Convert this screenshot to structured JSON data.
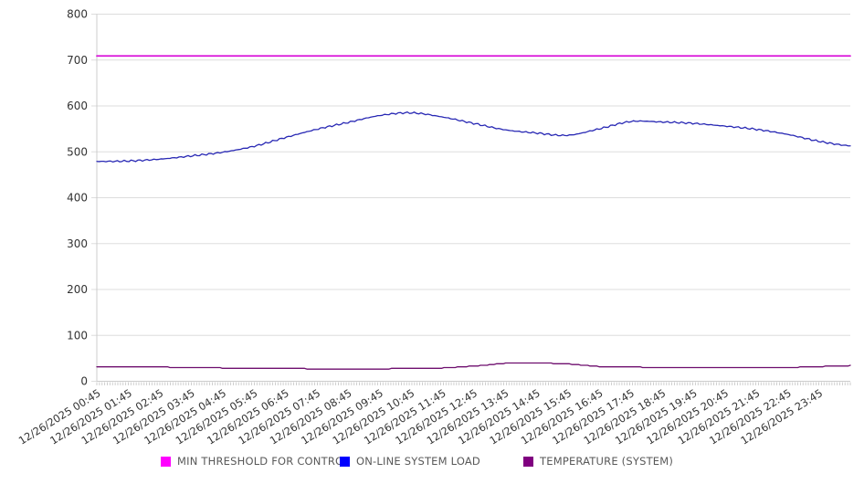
{
  "page": {
    "background": "#ffffff"
  },
  "chart_data": {
    "type": "line",
    "title": "",
    "xlabel": "",
    "ylabel": "",
    "ylim": [
      0,
      800
    ],
    "ytick_step": 100,
    "grid": true,
    "legend_position": "bottom",
    "x_minor_ticks": 288,
    "categories": [
      "12/26/2025 00:45",
      "12/26/2025 01:45",
      "12/26/2025 02:45",
      "12/26/2025 03:45",
      "12/26/2025 04:45",
      "12/26/2025 05:45",
      "12/26/2025 06:45",
      "12/26/2025 07:45",
      "12/26/2025 08:45",
      "12/26/2025 09:45",
      "12/26/2025 10:45",
      "12/26/2025 11:45",
      "12/26/2025 12:45",
      "12/26/2025 13:45",
      "12/26/2025 14:45",
      "12/26/2025 15:45",
      "12/26/2025 16:45",
      "12/26/2025 17:45",
      "12/26/2025 18:45",
      "12/26/2025 19:45",
      "12/26/2025 20:45",
      "12/26/2025 21:45",
      "12/26/2025 22:45",
      "12/26/2025 23:45"
    ],
    "values_note": "24 hourly samples starting 12/26/2025 00:45 plus one right-edge sample",
    "series": [
      {
        "name": "MIN THRESHOLD FOR CONTROL",
        "swatch_color": "#ff00ff",
        "line_color": "#d911d9",
        "shape": "constant",
        "values": [
          709,
          709,
          709,
          709,
          709,
          709,
          709,
          709,
          709,
          709,
          709,
          709,
          709,
          709,
          709,
          709,
          709,
          709,
          709,
          709,
          709,
          709,
          709,
          709,
          709
        ]
      },
      {
        "name": "ON-LINE SYSTEM LOAD",
        "swatch_color": "#0000ff",
        "line_color": "#2828b4",
        "shape": "smooth-noisy",
        "values": [
          479,
          480,
          484,
          491,
          499,
          512,
          531,
          549,
          564,
          579,
          585,
          576,
          562,
          548,
          541,
          536,
          550,
          566,
          565,
          562,
          556,
          549,
          538,
          523,
          513
        ]
      },
      {
        "name": "TEMPERATURE (SYSTEM)",
        "swatch_color": "#800080",
        "line_color": "#6e0e6e",
        "shape": "stepped",
        "values": [
          32,
          31,
          31,
          30,
          29,
          28,
          28,
          27,
          27,
          27,
          28,
          29,
          33,
          39,
          40,
          38,
          32,
          31,
          30,
          30,
          30,
          30,
          30,
          32,
          34
        ]
      }
    ],
    "colors": {
      "grid": "#dddddd",
      "axis": "#cccccc",
      "minor_tick": "#c9c9c9",
      "tick_label": "#333333",
      "legend_text": "#595959"
    }
  }
}
